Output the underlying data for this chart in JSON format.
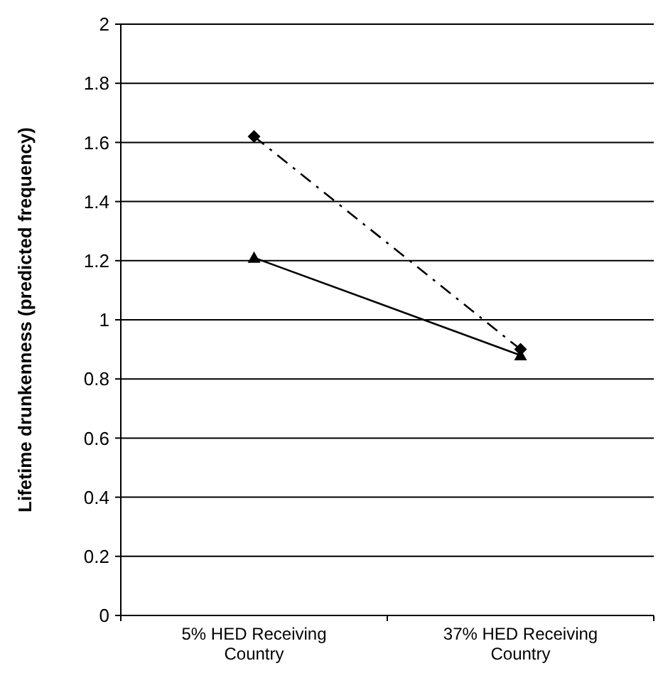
{
  "chart_data": {
    "type": "line",
    "ylabel": "Lifetime drunkenness (predicted frequency)",
    "categories": [
      "5% HED Receiving Country",
      "37% HED Receiving Country"
    ],
    "series": [
      {
        "color": "#000000",
        "values": [
          1.62,
          0.9
        ],
        "marker": "diamond",
        "line_style": "dashdot"
      },
      {
        "color": "#000000",
        "values": [
          1.21,
          0.88
        ],
        "marker": "triangle",
        "line_style": "solid"
      }
    ],
    "ylim": [
      0,
      2
    ],
    "yticks": [
      0,
      0.2,
      0.4,
      0.6,
      0.8,
      1,
      1.2,
      1.4,
      1.6,
      1.8,
      2
    ],
    "grid": "y"
  }
}
